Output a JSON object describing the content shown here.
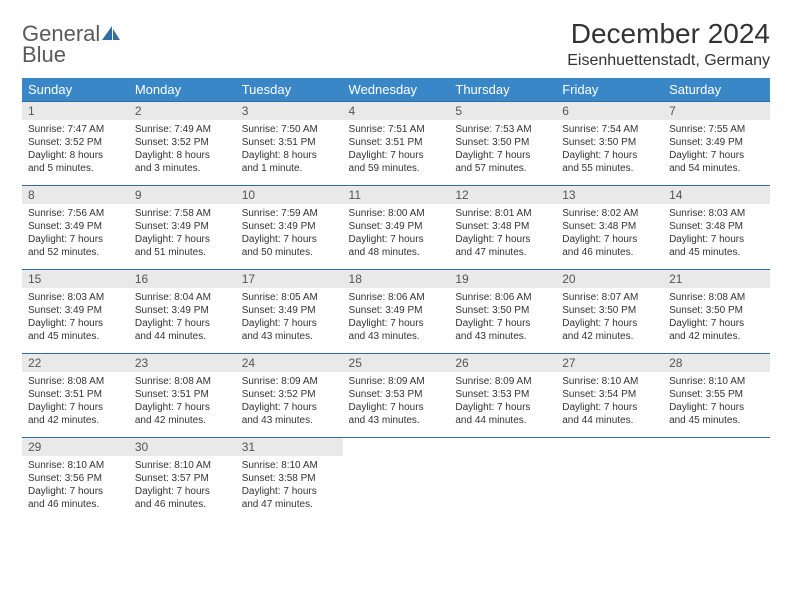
{
  "brand": {
    "line1": "General",
    "line2": "Blue"
  },
  "header": {
    "title": "December 2024",
    "location": "Eisenhuettenstadt, Germany"
  },
  "colors": {
    "header_bg": "#3a87c7",
    "header_text": "#ffffff",
    "daynum_bg": "#e9e9e9",
    "border": "#2f6fa8",
    "logo_gray": "#5a5a5a",
    "logo_blue": "#2f6fa8",
    "body_text": "#333333"
  },
  "weekdays": [
    "Sunday",
    "Monday",
    "Tuesday",
    "Wednesday",
    "Thursday",
    "Friday",
    "Saturday"
  ],
  "weeks": [
    [
      {
        "n": "1",
        "sunrise": "Sunrise: 7:47 AM",
        "sunset": "Sunset: 3:52 PM",
        "day1": "Daylight: 8 hours",
        "day2": "and 5 minutes."
      },
      {
        "n": "2",
        "sunrise": "Sunrise: 7:49 AM",
        "sunset": "Sunset: 3:52 PM",
        "day1": "Daylight: 8 hours",
        "day2": "and 3 minutes."
      },
      {
        "n": "3",
        "sunrise": "Sunrise: 7:50 AM",
        "sunset": "Sunset: 3:51 PM",
        "day1": "Daylight: 8 hours",
        "day2": "and 1 minute."
      },
      {
        "n": "4",
        "sunrise": "Sunrise: 7:51 AM",
        "sunset": "Sunset: 3:51 PM",
        "day1": "Daylight: 7 hours",
        "day2": "and 59 minutes."
      },
      {
        "n": "5",
        "sunrise": "Sunrise: 7:53 AM",
        "sunset": "Sunset: 3:50 PM",
        "day1": "Daylight: 7 hours",
        "day2": "and 57 minutes."
      },
      {
        "n": "6",
        "sunrise": "Sunrise: 7:54 AM",
        "sunset": "Sunset: 3:50 PM",
        "day1": "Daylight: 7 hours",
        "day2": "and 55 minutes."
      },
      {
        "n": "7",
        "sunrise": "Sunrise: 7:55 AM",
        "sunset": "Sunset: 3:49 PM",
        "day1": "Daylight: 7 hours",
        "day2": "and 54 minutes."
      }
    ],
    [
      {
        "n": "8",
        "sunrise": "Sunrise: 7:56 AM",
        "sunset": "Sunset: 3:49 PM",
        "day1": "Daylight: 7 hours",
        "day2": "and 52 minutes."
      },
      {
        "n": "9",
        "sunrise": "Sunrise: 7:58 AM",
        "sunset": "Sunset: 3:49 PM",
        "day1": "Daylight: 7 hours",
        "day2": "and 51 minutes."
      },
      {
        "n": "10",
        "sunrise": "Sunrise: 7:59 AM",
        "sunset": "Sunset: 3:49 PM",
        "day1": "Daylight: 7 hours",
        "day2": "and 50 minutes."
      },
      {
        "n": "11",
        "sunrise": "Sunrise: 8:00 AM",
        "sunset": "Sunset: 3:49 PM",
        "day1": "Daylight: 7 hours",
        "day2": "and 48 minutes."
      },
      {
        "n": "12",
        "sunrise": "Sunrise: 8:01 AM",
        "sunset": "Sunset: 3:48 PM",
        "day1": "Daylight: 7 hours",
        "day2": "and 47 minutes."
      },
      {
        "n": "13",
        "sunrise": "Sunrise: 8:02 AM",
        "sunset": "Sunset: 3:48 PM",
        "day1": "Daylight: 7 hours",
        "day2": "and 46 minutes."
      },
      {
        "n": "14",
        "sunrise": "Sunrise: 8:03 AM",
        "sunset": "Sunset: 3:48 PM",
        "day1": "Daylight: 7 hours",
        "day2": "and 45 minutes."
      }
    ],
    [
      {
        "n": "15",
        "sunrise": "Sunrise: 8:03 AM",
        "sunset": "Sunset: 3:49 PM",
        "day1": "Daylight: 7 hours",
        "day2": "and 45 minutes."
      },
      {
        "n": "16",
        "sunrise": "Sunrise: 8:04 AM",
        "sunset": "Sunset: 3:49 PM",
        "day1": "Daylight: 7 hours",
        "day2": "and 44 minutes."
      },
      {
        "n": "17",
        "sunrise": "Sunrise: 8:05 AM",
        "sunset": "Sunset: 3:49 PM",
        "day1": "Daylight: 7 hours",
        "day2": "and 43 minutes."
      },
      {
        "n": "18",
        "sunrise": "Sunrise: 8:06 AM",
        "sunset": "Sunset: 3:49 PM",
        "day1": "Daylight: 7 hours",
        "day2": "and 43 minutes."
      },
      {
        "n": "19",
        "sunrise": "Sunrise: 8:06 AM",
        "sunset": "Sunset: 3:50 PM",
        "day1": "Daylight: 7 hours",
        "day2": "and 43 minutes."
      },
      {
        "n": "20",
        "sunrise": "Sunrise: 8:07 AM",
        "sunset": "Sunset: 3:50 PM",
        "day1": "Daylight: 7 hours",
        "day2": "and 42 minutes."
      },
      {
        "n": "21",
        "sunrise": "Sunrise: 8:08 AM",
        "sunset": "Sunset: 3:50 PM",
        "day1": "Daylight: 7 hours",
        "day2": "and 42 minutes."
      }
    ],
    [
      {
        "n": "22",
        "sunrise": "Sunrise: 8:08 AM",
        "sunset": "Sunset: 3:51 PM",
        "day1": "Daylight: 7 hours",
        "day2": "and 42 minutes."
      },
      {
        "n": "23",
        "sunrise": "Sunrise: 8:08 AM",
        "sunset": "Sunset: 3:51 PM",
        "day1": "Daylight: 7 hours",
        "day2": "and 42 minutes."
      },
      {
        "n": "24",
        "sunrise": "Sunrise: 8:09 AM",
        "sunset": "Sunset: 3:52 PM",
        "day1": "Daylight: 7 hours",
        "day2": "and 43 minutes."
      },
      {
        "n": "25",
        "sunrise": "Sunrise: 8:09 AM",
        "sunset": "Sunset: 3:53 PM",
        "day1": "Daylight: 7 hours",
        "day2": "and 43 minutes."
      },
      {
        "n": "26",
        "sunrise": "Sunrise: 8:09 AM",
        "sunset": "Sunset: 3:53 PM",
        "day1": "Daylight: 7 hours",
        "day2": "and 44 minutes."
      },
      {
        "n": "27",
        "sunrise": "Sunrise: 8:10 AM",
        "sunset": "Sunset: 3:54 PM",
        "day1": "Daylight: 7 hours",
        "day2": "and 44 minutes."
      },
      {
        "n": "28",
        "sunrise": "Sunrise: 8:10 AM",
        "sunset": "Sunset: 3:55 PM",
        "day1": "Daylight: 7 hours",
        "day2": "and 45 minutes."
      }
    ],
    [
      {
        "n": "29",
        "sunrise": "Sunrise: 8:10 AM",
        "sunset": "Sunset: 3:56 PM",
        "day1": "Daylight: 7 hours",
        "day2": "and 46 minutes."
      },
      {
        "n": "30",
        "sunrise": "Sunrise: 8:10 AM",
        "sunset": "Sunset: 3:57 PM",
        "day1": "Daylight: 7 hours",
        "day2": "and 46 minutes."
      },
      {
        "n": "31",
        "sunrise": "Sunrise: 8:10 AM",
        "sunset": "Sunset: 3:58 PM",
        "day1": "Daylight: 7 hours",
        "day2": "and 47 minutes."
      },
      null,
      null,
      null,
      null
    ]
  ]
}
